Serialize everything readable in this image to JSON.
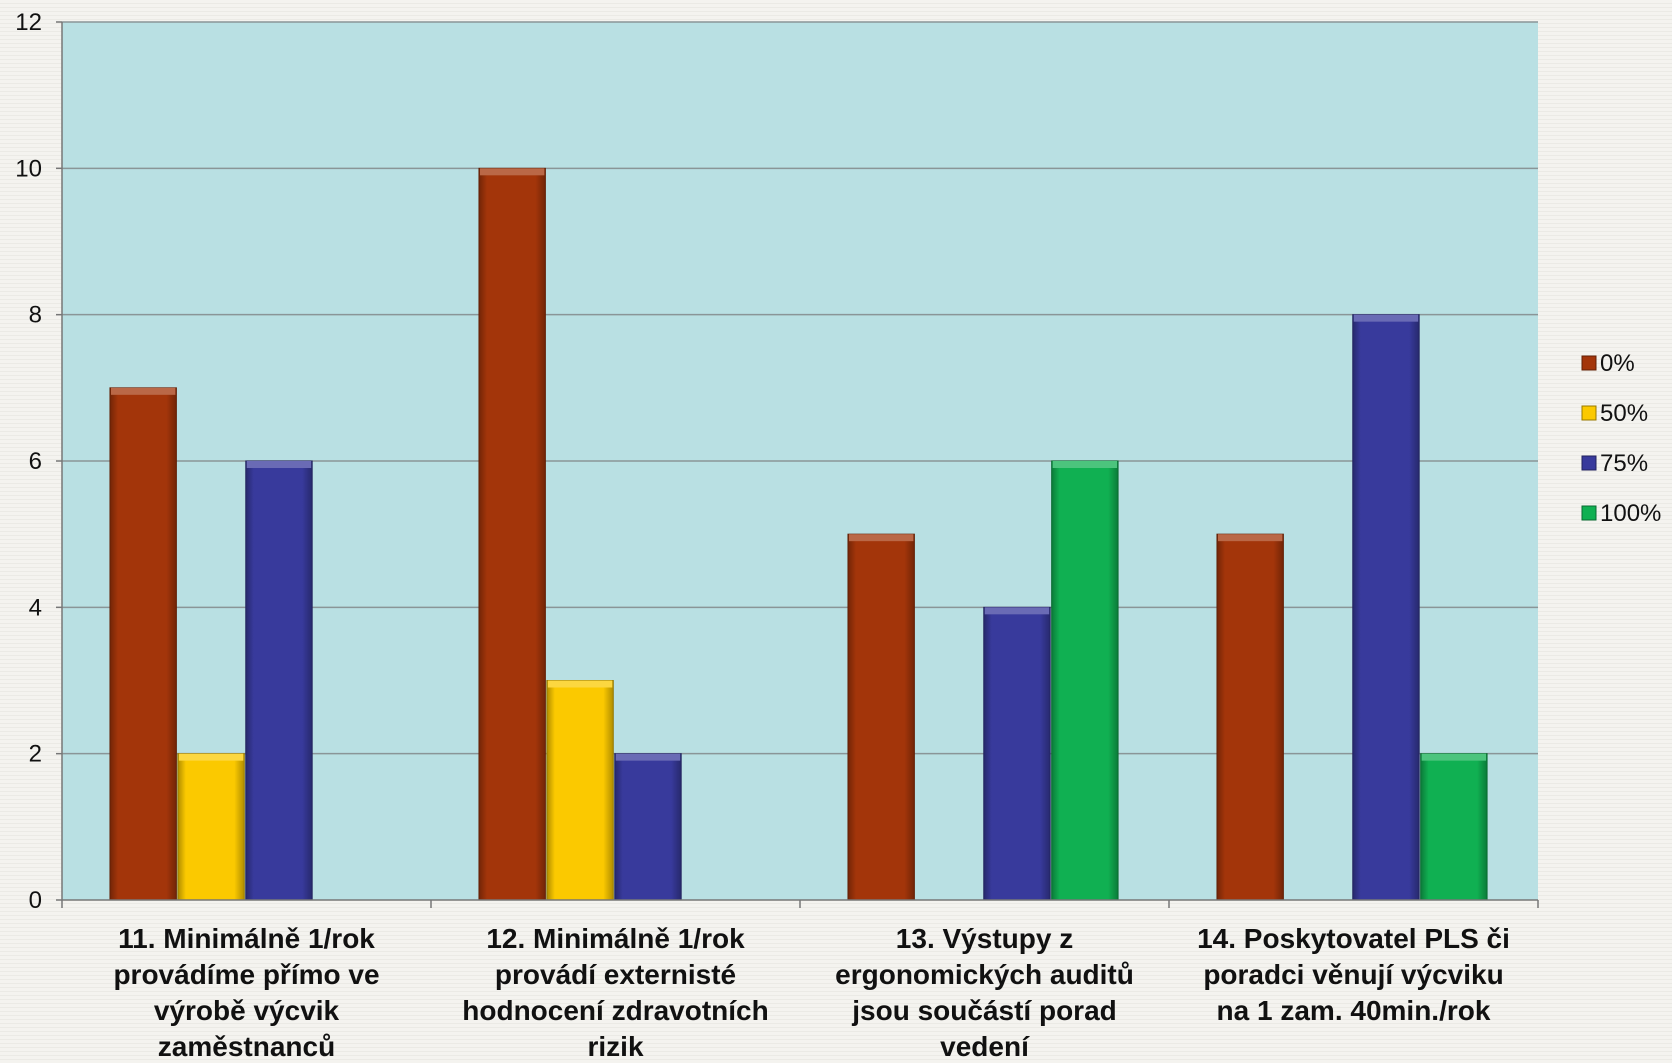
{
  "chart_data": {
    "type": "bar",
    "categories": [
      [
        "11. Minimálně 1/rok",
        "provádíme přímo ve",
        "výrobě výcvik",
        "zaměstnanců"
      ],
      [
        "12. Minimálně 1/rok",
        "provádí externisté",
        "hodnocení zdravotních",
        "rizik"
      ],
      [
        "13. Výstupy z",
        "ergonomických auditů",
        "jsou součástí porad",
        "vedení"
      ],
      [
        "14. Poskytovatel PLS či",
        "poradci věnují výcviku",
        "na 1 zam. 40min./rok"
      ]
    ],
    "series": [
      {
        "name": "0%",
        "color": "#a3350a",
        "values": [
          7,
          10,
          5,
          5
        ]
      },
      {
        "name": "50%",
        "color": "#fbc900",
        "values": [
          2,
          3,
          0,
          0
        ]
      },
      {
        "name": "75%",
        "color": "#383a9c",
        "values": [
          6,
          2,
          4,
          8
        ]
      },
      {
        "name": "100%",
        "color": "#10b052",
        "values": [
          0,
          0,
          6,
          2
        ]
      }
    ],
    "ylim": [
      0,
      12
    ],
    "yticks": [
      0,
      2,
      4,
      6,
      8,
      10,
      12
    ],
    "grid": true,
    "legend": "right",
    "plot_background": "#b9e0e3"
  }
}
